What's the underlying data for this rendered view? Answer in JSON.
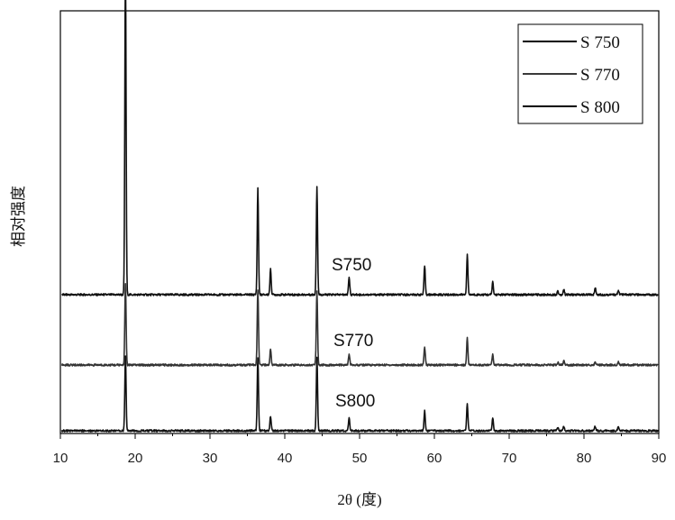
{
  "chart_data": {
    "type": "line",
    "xlabel": "2θ (度)",
    "ylabel": "相对强度",
    "xlim": [
      10,
      90
    ],
    "xticks": [
      "10",
      "20",
      "30",
      "40",
      "50",
      "60",
      "70",
      "80",
      "90"
    ],
    "grid": false,
    "legend_position": "top-right",
    "legend": [
      "S 750",
      "S 770",
      "S 800"
    ],
    "series": [
      {
        "name": "S750",
        "peaks": [
          {
            "x": 18.7,
            "y": 365
          },
          {
            "x": 36.4,
            "y": 118
          },
          {
            "x": 38.1,
            "y": 28
          },
          {
            "x": 44.3,
            "y": 120
          },
          {
            "x": 48.6,
            "y": 20
          },
          {
            "x": 58.7,
            "y": 32
          },
          {
            "x": 64.4,
            "y": 44
          },
          {
            "x": 67.8,
            "y": 14
          },
          {
            "x": 76.5,
            "y": 4
          },
          {
            "x": 77.3,
            "y": 6
          },
          {
            "x": 81.5,
            "y": 8
          },
          {
            "x": 84.6,
            "y": 5
          }
        ]
      },
      {
        "name": "S770",
        "peaks": [
          {
            "x": 18.7,
            "y": 90
          },
          {
            "x": 36.4,
            "y": 84
          },
          {
            "x": 38.1,
            "y": 18
          },
          {
            "x": 44.3,
            "y": 82
          },
          {
            "x": 48.6,
            "y": 12
          },
          {
            "x": 58.7,
            "y": 20
          },
          {
            "x": 64.4,
            "y": 30
          },
          {
            "x": 67.8,
            "y": 12
          },
          {
            "x": 76.5,
            "y": 3
          },
          {
            "x": 77.3,
            "y": 5
          },
          {
            "x": 81.5,
            "y": 4
          },
          {
            "x": 84.6,
            "y": 4
          }
        ]
      },
      {
        "name": "S800",
        "peaks": [
          {
            "x": 18.7,
            "y": 82
          },
          {
            "x": 36.4,
            "y": 82
          },
          {
            "x": 38.1,
            "y": 16
          },
          {
            "x": 44.3,
            "y": 82
          },
          {
            "x": 48.6,
            "y": 14
          },
          {
            "x": 58.7,
            "y": 22
          },
          {
            "x": 64.4,
            "y": 30
          },
          {
            "x": 67.8,
            "y": 14
          },
          {
            "x": 76.5,
            "y": 4
          },
          {
            "x": 77.3,
            "y": 5
          },
          {
            "x": 81.5,
            "y": 5
          },
          {
            "x": 84.6,
            "y": 4
          }
        ]
      }
    ]
  }
}
